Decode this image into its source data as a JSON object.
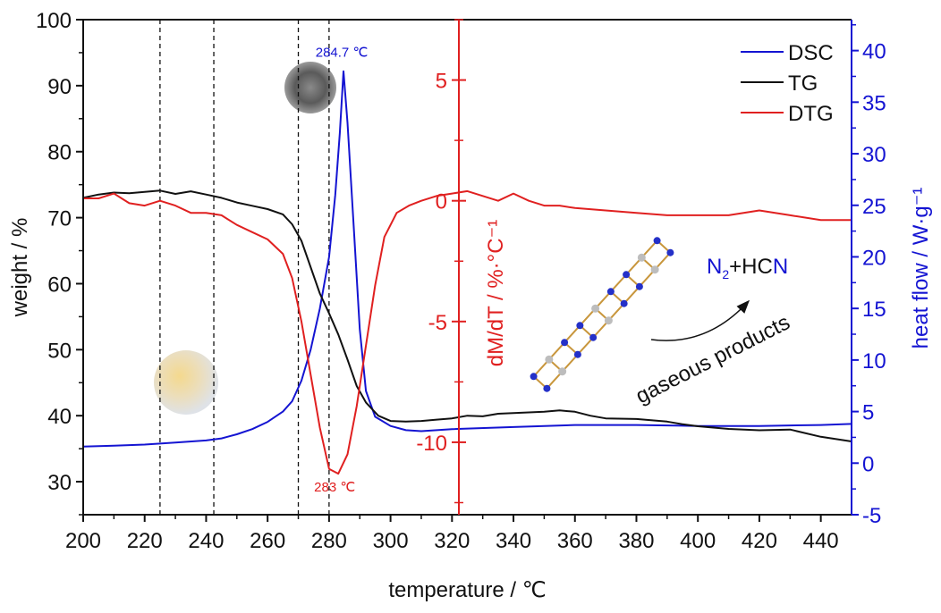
{
  "chart_data": {
    "type": "line",
    "xlabel": "temperature / ℃",
    "xlim": [
      200,
      450
    ],
    "x_ticks": [
      200,
      220,
      240,
      260,
      280,
      300,
      320,
      340,
      360,
      380,
      400,
      420,
      440
    ],
    "axes": {
      "weight": {
        "label": "weight / %",
        "ylim": [
          25,
          100
        ],
        "ticks": [
          30,
          40,
          50,
          60,
          70,
          80,
          90,
          100
        ],
        "color": "#111111"
      },
      "dtg": {
        "label": "dM/dT / %·°C⁻¹",
        "ylim": [
          -13,
          7.5
        ],
        "ticks": [
          -10,
          -5,
          0,
          5
        ],
        "color": "#e02020"
      },
      "heat": {
        "label": "heat flow / W·g⁻¹",
        "ylim": [
          -5,
          43
        ],
        "ticks": [
          -5,
          0,
          5,
          10,
          15,
          20,
          25,
          30,
          35,
          40
        ],
        "color": "#1414d2"
      }
    },
    "series": [
      {
        "name": "DSC",
        "axis": "heat",
        "color": "#1414d2",
        "points": [
          [
            200,
            1.6
          ],
          [
            210,
            1.7
          ],
          [
            220,
            1.8
          ],
          [
            230,
            2.0
          ],
          [
            240,
            2.2
          ],
          [
            245,
            2.4
          ],
          [
            250,
            2.8
          ],
          [
            255,
            3.3
          ],
          [
            260,
            4.0
          ],
          [
            265,
            5.0
          ],
          [
            268,
            6.0
          ],
          [
            271,
            8.0
          ],
          [
            274,
            11.0
          ],
          [
            277,
            15.0
          ],
          [
            280,
            20.0
          ],
          [
            282,
            26.0
          ],
          [
            283.5,
            32.0
          ],
          [
            284.7,
            38.0
          ],
          [
            286,
            33.0
          ],
          [
            288,
            23.0
          ],
          [
            290,
            13.0
          ],
          [
            292,
            7.0
          ],
          [
            295,
            4.5
          ],
          [
            300,
            3.6
          ],
          [
            305,
            3.2
          ],
          [
            310,
            3.1
          ],
          [
            320,
            3.3
          ],
          [
            340,
            3.5
          ],
          [
            360,
            3.7
          ],
          [
            380,
            3.7
          ],
          [
            400,
            3.6
          ],
          [
            420,
            3.6
          ],
          [
            440,
            3.7
          ],
          [
            450,
            3.8
          ]
        ]
      },
      {
        "name": "TG",
        "axis": "weight",
        "color": "#111111",
        "points": [
          [
            200,
            73
          ],
          [
            205,
            73.5
          ],
          [
            210,
            73.8
          ],
          [
            215,
            73.7
          ],
          [
            220,
            73.9
          ],
          [
            225,
            74.1
          ],
          [
            230,
            73.6
          ],
          [
            235,
            74.0
          ],
          [
            240,
            73.5
          ],
          [
            245,
            73.0
          ],
          [
            250,
            72.3
          ],
          [
            255,
            71.8
          ],
          [
            260,
            71.3
          ],
          [
            265,
            70.5
          ],
          [
            268,
            69
          ],
          [
            271,
            66.5
          ],
          [
            274,
            62.5
          ],
          [
            277,
            58.5
          ],
          [
            280,
            55.5
          ],
          [
            283,
            52.3
          ],
          [
            286,
            48.5
          ],
          [
            289,
            44.5
          ],
          [
            292,
            42.0
          ],
          [
            296,
            40.0
          ],
          [
            300,
            39.2
          ],
          [
            305,
            39.1
          ],
          [
            310,
            39.2
          ],
          [
            315,
            39.4
          ],
          [
            320,
            39.6
          ],
          [
            325,
            40.0
          ],
          [
            330,
            39.9
          ],
          [
            335,
            40.3
          ],
          [
            340,
            40.4
          ],
          [
            345,
            40.5
          ],
          [
            350,
            40.6
          ],
          [
            355,
            40.8
          ],
          [
            360,
            40.6
          ],
          [
            365,
            40.0
          ],
          [
            370,
            39.6
          ],
          [
            380,
            39.5
          ],
          [
            390,
            39.1
          ],
          [
            395,
            38.7
          ],
          [
            400,
            38.4
          ],
          [
            405,
            38.2
          ],
          [
            410,
            38.0
          ],
          [
            420,
            37.8
          ],
          [
            430,
            37.9
          ],
          [
            440,
            36.8
          ],
          [
            450,
            36.1
          ]
        ]
      },
      {
        "name": "DTG",
        "axis": "dtg",
        "color": "#e02020",
        "points": [
          [
            200,
            0.1
          ],
          [
            205,
            0.1
          ],
          [
            210,
            0.3
          ],
          [
            215,
            -0.1
          ],
          [
            220,
            -0.2
          ],
          [
            225,
            0.0
          ],
          [
            230,
            -0.2
          ],
          [
            235,
            -0.5
          ],
          [
            240,
            -0.5
          ],
          [
            245,
            -0.6
          ],
          [
            250,
            -1.0
          ],
          [
            255,
            -1.3
          ],
          [
            260,
            -1.6
          ],
          [
            265,
            -2.2
          ],
          [
            268,
            -3.2
          ],
          [
            271,
            -5.0
          ],
          [
            274,
            -7.2
          ],
          [
            277,
            -9.4
          ],
          [
            280,
            -11.1
          ],
          [
            283,
            -11.3
          ],
          [
            286,
            -10.5
          ],
          [
            289,
            -8.5
          ],
          [
            292,
            -6.0
          ],
          [
            295,
            -3.5
          ],
          [
            298,
            -1.5
          ],
          [
            302,
            -0.5
          ],
          [
            306,
            -0.2
          ],
          [
            310,
            0.0
          ],
          [
            315,
            0.2
          ],
          [
            320,
            0.3
          ],
          [
            325,
            0.4
          ],
          [
            330,
            0.2
          ],
          [
            335,
            0.0
          ],
          [
            340,
            0.3
          ],
          [
            345,
            0.0
          ],
          [
            350,
            -0.2
          ],
          [
            355,
            -0.2
          ],
          [
            360,
            -0.3
          ],
          [
            370,
            -0.4
          ],
          [
            380,
            -0.5
          ],
          [
            390,
            -0.6
          ],
          [
            400,
            -0.6
          ],
          [
            410,
            -0.6
          ],
          [
            420,
            -0.4
          ],
          [
            430,
            -0.6
          ],
          [
            440,
            -0.8
          ],
          [
            450,
            -0.8
          ]
        ]
      }
    ],
    "vlines": [
      225,
      242.5,
      270,
      280
    ],
    "annotations": {
      "dsc_peak": {
        "label": "284.7 ℃",
        "x": 284.7,
        "y": 38.0,
        "axis": "heat"
      },
      "dtg_peak": {
        "label": "283 ℃",
        "x": 283,
        "y": -11.3,
        "axis": "dtg"
      }
    },
    "legend": [
      "DSC",
      "TG",
      "DTG"
    ],
    "legend_position": "top-right",
    "product_text": {
      "n": "N",
      "sub": "2",
      "plus": "+HC",
      "n2": "N",
      "gaseous": "gaseous products"
    }
  }
}
